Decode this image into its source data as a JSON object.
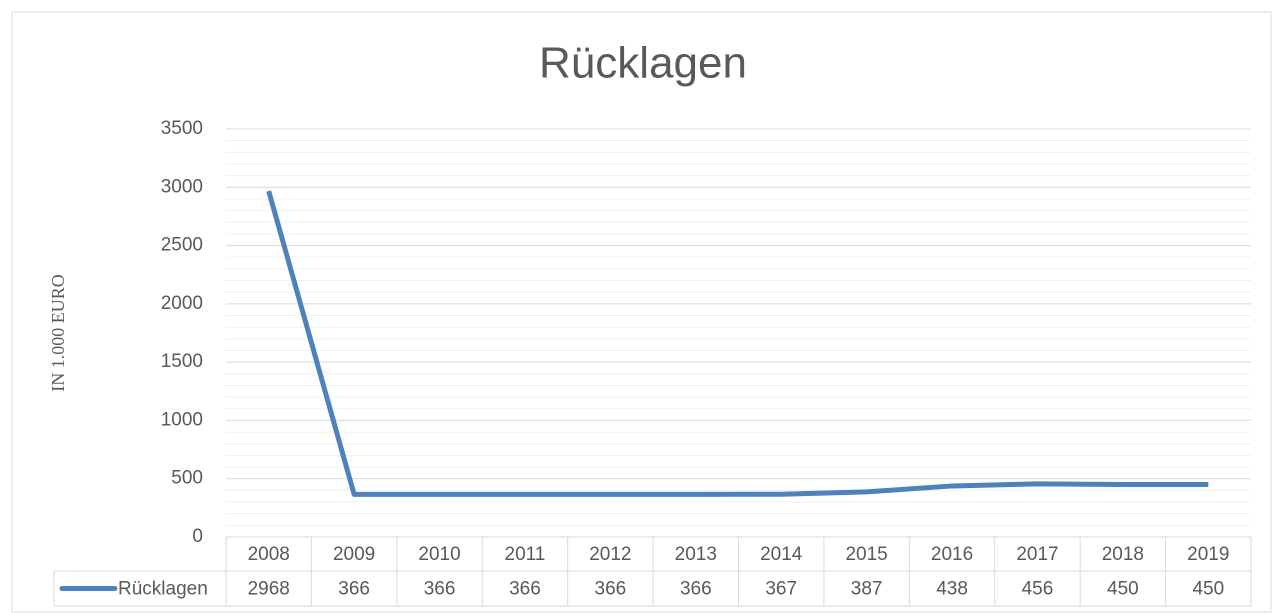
{
  "chart_data": {
    "type": "line",
    "title": "Rücklagen",
    "y_label": "IN 1.000 EURO",
    "categories": [
      "2008",
      "2009",
      "2010",
      "2011",
      "2012",
      "2013",
      "2014",
      "2015",
      "2016",
      "2017",
      "2018",
      "2019"
    ],
    "series": [
      {
        "name": "Rücklagen",
        "color": "#4f81bd",
        "values": [
          2968,
          366,
          366,
          366,
          366,
          366,
          367,
          387,
          438,
          456,
          450,
          450
        ]
      }
    ],
    "ylim": [
      0,
      3500
    ],
    "yticks": [
      0,
      500,
      1000,
      1500,
      2000,
      2500,
      3000,
      3500
    ],
    "minor_yticks": [
      100,
      200,
      300,
      400,
      600,
      700,
      800,
      900,
      1100,
      1200,
      1300,
      1400,
      1600,
      1700,
      1800,
      1900,
      2100,
      2200,
      2300,
      2400,
      2600,
      2700,
      2800,
      2900,
      3100,
      3200,
      3300,
      3400
    ],
    "grid": true,
    "data_table": true
  }
}
